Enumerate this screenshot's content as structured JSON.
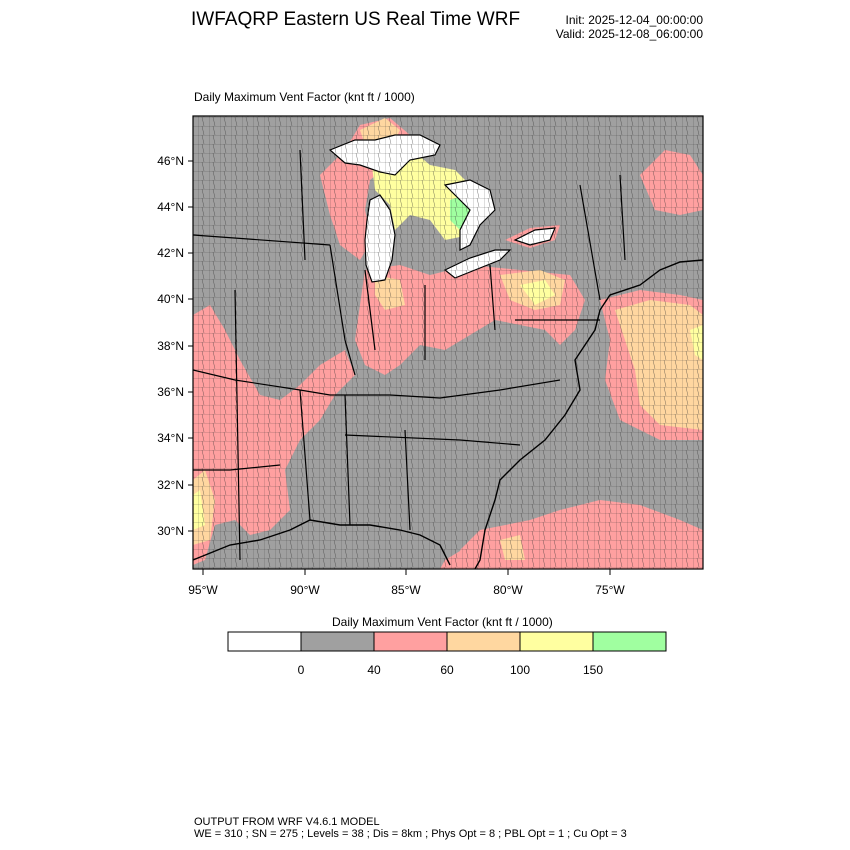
{
  "header": {
    "title": "IWFAQRP Eastern US Real Time WRF",
    "init": "Init: 2025-12-04_00:00:00",
    "valid": "Valid: 2025-12-08_06:00:00"
  },
  "map": {
    "label": "Daily Maximum Vent Factor   (knt ft / 1000)",
    "lat_labels": [
      "46°N",
      "44°N",
      "42°N",
      "40°N",
      "38°N",
      "36°N",
      "34°N",
      "32°N",
      "30°N"
    ],
    "lon_labels": [
      "95°W",
      "90°W",
      "85°W",
      "80°W",
      "75°W"
    ],
    "colors": {
      "water": "#ffffff",
      "land_low": "#a0a0a0",
      "band_40_60": "#ffa0a0",
      "band_60_100": "#ffd7a0",
      "band_100_150": "#ffffa0",
      "band_150_plus": "#a0ffa0"
    }
  },
  "legend": {
    "title": "Daily Maximum Vent Factor  (knt ft / 1000)",
    "swatches": [
      "#ffffff",
      "#a0a0a0",
      "#ffa0a0",
      "#ffd7a0",
      "#ffffa0",
      "#a0ffa0"
    ],
    "labels": [
      "0",
      "40",
      "60",
      "100",
      "150"
    ]
  },
  "footer": {
    "line1": "OUTPUT FROM WRF V4.6.1 MODEL",
    "line2": "WE = 310 ; SN = 275 ; Levels = 38 ; Dis = 8km ; Phys Opt = 8 ; PBL Opt = 1 ; Cu Opt = 3"
  }
}
